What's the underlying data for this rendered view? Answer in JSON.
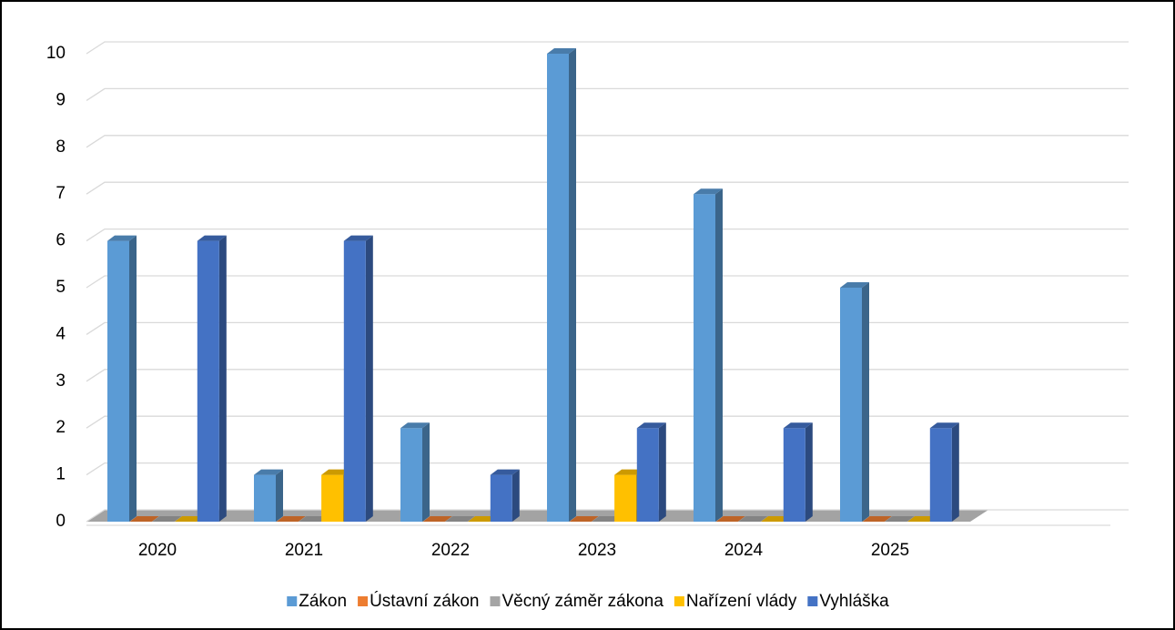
{
  "chart_data": {
    "type": "bar",
    "categories": [
      "2020",
      "2021",
      "2022",
      "2023",
      "2024",
      "2025"
    ],
    "series": [
      {
        "name": "Zákon",
        "color": "#5b9bd5",
        "values": [
          6,
          1,
          2,
          10,
          7,
          5
        ]
      },
      {
        "name": "Ústavní zákon",
        "color": "#ed7d31",
        "values": [
          0,
          0,
          0,
          0,
          0,
          0
        ]
      },
      {
        "name": "Věcný záměr zákona",
        "color": "#a5a5a5",
        "values": [
          0,
          0,
          0,
          0,
          0,
          0
        ]
      },
      {
        "name": "Nařízení vlády",
        "color": "#ffc000",
        "values": [
          0,
          1,
          0,
          1,
          0,
          0
        ]
      },
      {
        "name": "Vyhláška",
        "color": "#4472c4",
        "values": [
          6,
          6,
          1,
          2,
          2,
          2
        ]
      }
    ],
    "ylim": [
      0,
      10
    ],
    "yticks": [
      0,
      1,
      2,
      3,
      4,
      5,
      6,
      7,
      8,
      9,
      10
    ],
    "grid": true,
    "legend": "bottom"
  }
}
